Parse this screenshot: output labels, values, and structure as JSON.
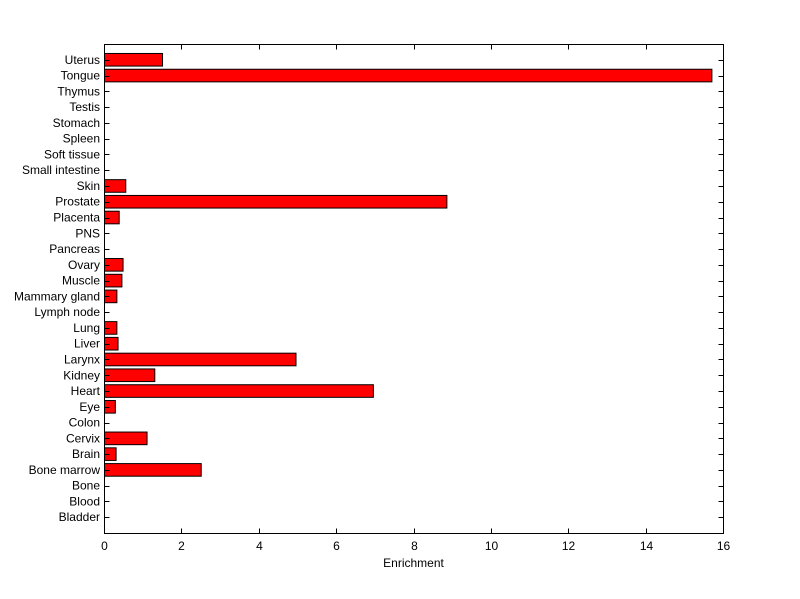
{
  "chart_data": {
    "type": "bar",
    "orientation": "horizontal",
    "categories": [
      "Uterus",
      "Tongue",
      "Thymus",
      "Testis",
      "Stomach",
      "Spleen",
      "Soft tissue",
      "Small intestine",
      "Skin",
      "Prostate",
      "Placenta",
      "PNS",
      "Pancreas",
      "Ovary",
      "Muscle",
      "Mammary gland",
      "Lymph node",
      "Lung",
      "Liver",
      "Larynx",
      "Kidney",
      "Heart",
      "Eye",
      "Colon",
      "Cervix",
      "Brain",
      "Bone marrow",
      "Bone",
      "Blood",
      "Bladder"
    ],
    "values": [
      1.5,
      15.7,
      0,
      0,
      0,
      0,
      0,
      0,
      0.55,
      8.85,
      0.38,
      0,
      0,
      0.48,
      0.45,
      0.32,
      0,
      0.32,
      0.35,
      4.95,
      1.3,
      6.95,
      0.28,
      0,
      1.1,
      0.3,
      2.5,
      0,
      0,
      0
    ],
    "xlabel": "Enrichment",
    "ylabel": "",
    "title": "",
    "xlim": [
      0,
      16
    ],
    "xticks": [
      0,
      2,
      4,
      6,
      8,
      10,
      12,
      14,
      16
    ],
    "grid": false,
    "legend": "none",
    "bar_color": "#ff0000",
    "edge_color": "#000000"
  }
}
